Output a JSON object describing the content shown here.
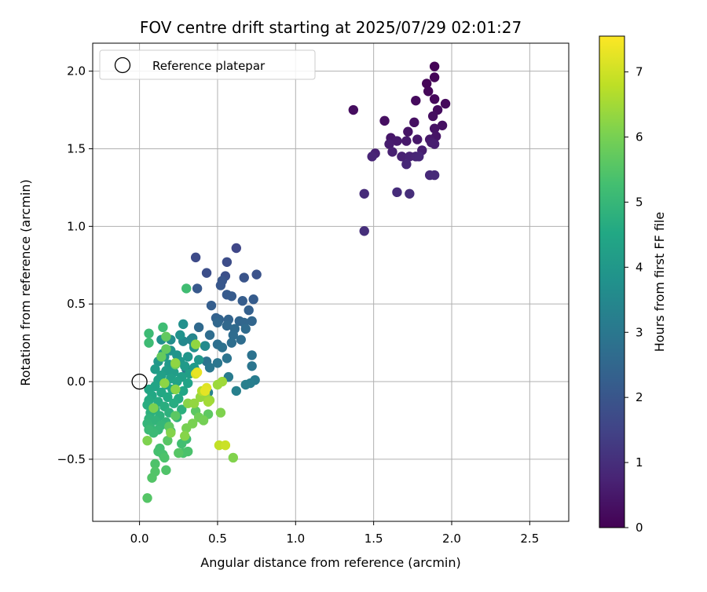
{
  "chart_data": {
    "type": "scatter",
    "title": "FOV centre drift starting at 2025/07/29 02:01:27",
    "xlabel": "Angular distance from reference (arcmin)",
    "ylabel": "Rotation from reference (arcmin)",
    "xlim": [
      -0.3,
      2.75
    ],
    "ylim": [
      -0.9,
      2.18
    ],
    "xticks": [
      0.0,
      0.5,
      1.0,
      1.5,
      2.0,
      2.5
    ],
    "xtick_labels": [
      "0.0",
      "0.5",
      "1.0",
      "1.5",
      "2.0",
      "2.5"
    ],
    "yticks": [
      -0.5,
      0.0,
      0.5,
      1.0,
      1.5,
      2.0
    ],
    "ytick_labels": [
      "−0.5",
      "0.0",
      "0.5",
      "1.0",
      "1.5",
      "2.0"
    ],
    "grid": true,
    "legend": {
      "position": "top-left",
      "entries": [
        {
          "label": "Reference platepar",
          "marker": "open-circle"
        }
      ]
    },
    "reference_point": {
      "x": 0.0,
      "y": 0.0
    },
    "colorbar": {
      "label": "Hours from first FF file",
      "colormap": "viridis",
      "range": [
        0,
        7.55
      ],
      "ticks": [
        0,
        1,
        2,
        3,
        4,
        5,
        6,
        7
      ],
      "tick_labels": [
        "0",
        "1",
        "2",
        "3",
        "4",
        "5",
        "6",
        "7"
      ]
    },
    "series": [
      {
        "points": [
          [
            1.89,
            2.03,
            0.05
          ],
          [
            1.89,
            1.96,
            0.08
          ],
          [
            1.84,
            1.92,
            0.1
          ],
          [
            1.85,
            1.87,
            0.12
          ],
          [
            1.89,
            1.82,
            0.15
          ],
          [
            1.96,
            1.79,
            0.18
          ],
          [
            1.77,
            1.81,
            0.2
          ],
          [
            1.91,
            1.75,
            0.22
          ],
          [
            1.37,
            1.75,
            0.25
          ],
          [
            1.88,
            1.71,
            0.28
          ],
          [
            1.57,
            1.68,
            0.3
          ],
          [
            1.76,
            1.67,
            0.32
          ],
          [
            1.94,
            1.65,
            0.35
          ],
          [
            1.89,
            1.63,
            0.38
          ],
          [
            1.72,
            1.61,
            0.4
          ],
          [
            1.9,
            1.58,
            0.42
          ],
          [
            1.61,
            1.57,
            0.45
          ],
          [
            1.86,
            1.56,
            0.48
          ],
          [
            1.78,
            1.56,
            0.5
          ],
          [
            1.71,
            1.55,
            0.52
          ],
          [
            1.65,
            1.55,
            0.55
          ],
          [
            1.87,
            1.54,
            0.58
          ],
          [
            1.6,
            1.53,
            0.6
          ],
          [
            1.89,
            1.53,
            0.62
          ],
          [
            1.81,
            1.49,
            0.65
          ],
          [
            1.62,
            1.48,
            0.68
          ],
          [
            1.51,
            1.47,
            0.7
          ],
          [
            1.68,
            1.45,
            0.72
          ],
          [
            1.73,
            1.45,
            0.75
          ],
          [
            1.49,
            1.45,
            0.78
          ],
          [
            1.77,
            1.45,
            0.8
          ],
          [
            1.79,
            1.45,
            0.82
          ],
          [
            1.71,
            1.4,
            0.85
          ],
          [
            1.86,
            1.33,
            0.88
          ],
          [
            1.89,
            1.33,
            0.9
          ],
          [
            1.44,
            1.21,
            0.92
          ],
          [
            1.65,
            1.22,
            0.95
          ],
          [
            1.73,
            1.21,
            0.98
          ],
          [
            1.44,
            0.97,
            1.02
          ],
          [
            0.62,
            0.86,
            1.6
          ],
          [
            0.36,
            0.8,
            1.7
          ],
          [
            0.56,
            0.77,
            1.75
          ],
          [
            0.43,
            0.7,
            1.8
          ],
          [
            0.55,
            0.68,
            1.85
          ],
          [
            0.75,
            0.69,
            1.9
          ],
          [
            0.67,
            0.67,
            1.95
          ],
          [
            0.53,
            0.65,
            2.0
          ],
          [
            0.52,
            0.62,
            2.05
          ],
          [
            0.37,
            0.6,
            2.1
          ],
          [
            0.56,
            0.56,
            2.12
          ],
          [
            0.59,
            0.55,
            2.15
          ],
          [
            0.73,
            0.53,
            2.18
          ],
          [
            0.66,
            0.52,
            2.2
          ],
          [
            0.46,
            0.49,
            2.25
          ],
          [
            0.7,
            0.46,
            2.3
          ],
          [
            0.49,
            0.41,
            2.35
          ],
          [
            0.51,
            0.4,
            2.4
          ],
          [
            0.57,
            0.4,
            2.42
          ],
          [
            0.64,
            0.39,
            2.45
          ],
          [
            0.72,
            0.39,
            2.48
          ],
          [
            0.67,
            0.38,
            2.5
          ],
          [
            0.5,
            0.38,
            2.52
          ],
          [
            0.56,
            0.36,
            2.55
          ],
          [
            0.38,
            0.35,
            2.58
          ],
          [
            0.61,
            0.34,
            2.6
          ],
          [
            0.68,
            0.34,
            2.62
          ],
          [
            0.6,
            0.3,
            2.65
          ],
          [
            0.45,
            0.3,
            2.68
          ],
          [
            0.65,
            0.27,
            2.7
          ],
          [
            0.59,
            0.25,
            2.72
          ],
          [
            0.5,
            0.24,
            2.75
          ],
          [
            0.42,
            0.23,
            2.78
          ],
          [
            0.53,
            0.22,
            2.8
          ],
          [
            0.72,
            0.17,
            2.85
          ],
          [
            0.43,
            0.13,
            2.88
          ],
          [
            0.56,
            0.15,
            2.9
          ],
          [
            0.72,
            0.1,
            2.92
          ],
          [
            0.5,
            0.12,
            2.95
          ],
          [
            0.45,
            0.09,
            2.98
          ],
          [
            0.3,
            0.08,
            3.0
          ],
          [
            0.36,
            0.07,
            3.02
          ],
          [
            0.31,
            0.06,
            3.05
          ],
          [
            0.57,
            0.03,
            3.1
          ],
          [
            0.74,
            0.01,
            3.15
          ],
          [
            0.71,
            -0.01,
            3.2
          ],
          [
            0.68,
            -0.02,
            3.22
          ],
          [
            0.62,
            -0.06,
            3.25
          ],
          [
            0.44,
            -0.07,
            3.3
          ],
          [
            0.34,
            0.28,
            3.4
          ],
          [
            0.33,
            0.27,
            3.45
          ],
          [
            0.28,
            0.26,
            3.5
          ],
          [
            0.35,
            0.24,
            3.55
          ],
          [
            0.42,
            0.23,
            3.6
          ],
          [
            0.2,
            0.27,
            3.65
          ],
          [
            0.14,
            0.27,
            3.7
          ],
          [
            0.28,
            0.37,
            3.75
          ],
          [
            0.26,
            0.3,
            3.8
          ],
          [
            0.35,
            0.22,
            3.82
          ],
          [
            0.2,
            0.2,
            3.85
          ],
          [
            0.15,
            0.18,
            3.88
          ],
          [
            0.24,
            0.17,
            3.9
          ],
          [
            0.31,
            0.16,
            3.92
          ],
          [
            0.16,
            0.16,
            3.95
          ],
          [
            0.38,
            0.14,
            3.98
          ],
          [
            0.12,
            0.13,
            4.0
          ],
          [
            0.26,
            0.13,
            4.02
          ],
          [
            0.19,
            0.11,
            4.05
          ],
          [
            0.29,
            0.1,
            4.08
          ],
          [
            0.35,
            0.09,
            4.1
          ],
          [
            0.1,
            0.08,
            4.12
          ],
          [
            0.17,
            0.07,
            4.15
          ],
          [
            0.22,
            0.06,
            4.18
          ],
          [
            0.32,
            0.05,
            4.2
          ],
          [
            0.14,
            0.04,
            4.22
          ],
          [
            0.27,
            0.03,
            4.25
          ],
          [
            0.2,
            0.02,
            4.28
          ],
          [
            0.12,
            0.01,
            4.3
          ],
          [
            0.24,
            0.0,
            4.32
          ],
          [
            0.31,
            -0.01,
            4.35
          ],
          [
            0.17,
            -0.02,
            4.38
          ],
          [
            0.1,
            -0.03,
            4.4
          ],
          [
            0.06,
            -0.05,
            4.42
          ],
          [
            0.21,
            -0.05,
            4.45
          ],
          [
            0.28,
            -0.06,
            4.48
          ],
          [
            0.14,
            -0.07,
            4.5
          ],
          [
            0.08,
            -0.09,
            4.52
          ],
          [
            0.18,
            -0.1,
            4.55
          ],
          [
            0.25,
            -0.11,
            4.58
          ],
          [
            0.06,
            -0.12,
            4.6
          ],
          [
            0.12,
            -0.13,
            4.62
          ],
          [
            0.22,
            -0.14,
            4.65
          ],
          [
            0.05,
            -0.15,
            4.68
          ],
          [
            0.16,
            -0.16,
            4.7
          ],
          [
            0.1,
            -0.18,
            4.72
          ],
          [
            0.27,
            -0.18,
            4.75
          ],
          [
            0.07,
            -0.2,
            4.78
          ],
          [
            0.19,
            -0.2,
            4.8
          ],
          [
            0.13,
            -0.22,
            4.82
          ],
          [
            0.24,
            -0.23,
            4.85
          ],
          [
            0.06,
            -0.24,
            4.88
          ],
          [
            0.1,
            -0.25,
            4.9
          ],
          [
            0.17,
            -0.26,
            4.92
          ],
          [
            0.05,
            -0.27,
            4.95
          ],
          [
            0.14,
            -0.28,
            4.98
          ],
          [
            0.07,
            -0.3,
            5.0
          ],
          [
            0.12,
            -0.31,
            5.02
          ],
          [
            0.2,
            -0.32,
            5.05
          ],
          [
            0.09,
            -0.33,
            5.08
          ],
          [
            0.06,
            -0.31,
            5.1
          ],
          [
            0.06,
            0.31,
            5.12
          ],
          [
            0.06,
            0.25,
            5.15
          ],
          [
            0.15,
            0.35,
            5.18
          ],
          [
            0.3,
            0.6,
            5.2
          ],
          [
            0.3,
            -0.37,
            5.22
          ],
          [
            0.27,
            -0.4,
            5.25
          ],
          [
            0.13,
            -0.43,
            5.28
          ],
          [
            0.12,
            -0.45,
            5.3
          ],
          [
            0.15,
            -0.47,
            5.32
          ],
          [
            0.28,
            -0.46,
            5.35
          ],
          [
            0.31,
            -0.45,
            5.38
          ],
          [
            0.16,
            -0.49,
            5.4
          ],
          [
            0.1,
            -0.53,
            5.42
          ],
          [
            0.17,
            -0.57,
            5.45
          ],
          [
            0.1,
            -0.58,
            5.48
          ],
          [
            0.08,
            -0.62,
            5.5
          ],
          [
            0.05,
            -0.75,
            5.52
          ],
          [
            0.25,
            -0.46,
            5.55
          ],
          [
            0.18,
            -0.38,
            5.58
          ],
          [
            0.23,
            -0.22,
            5.6
          ],
          [
            0.36,
            -0.19,
            5.62
          ],
          [
            0.44,
            -0.21,
            5.65
          ],
          [
            0.19,
            -0.29,
            5.68
          ],
          [
            0.17,
            0.29,
            5.7
          ],
          [
            0.17,
            0.21,
            5.72
          ],
          [
            0.14,
            0.16,
            5.75
          ],
          [
            0.23,
            0.11,
            5.78
          ],
          [
            0.38,
            -0.23,
            5.9
          ],
          [
            0.41,
            -0.25,
            5.95
          ],
          [
            0.3,
            -0.3,
            6.0
          ],
          [
            0.34,
            -0.27,
            6.02
          ],
          [
            0.09,
            -0.17,
            6.05
          ],
          [
            0.05,
            -0.38,
            6.08
          ],
          [
            0.52,
            -0.2,
            6.1
          ],
          [
            0.6,
            -0.49,
            6.12
          ],
          [
            0.2,
            -0.33,
            6.15
          ],
          [
            0.29,
            -0.35,
            6.18
          ],
          [
            0.31,
            -0.14,
            6.2
          ],
          [
            0.23,
            -0.05,
            6.22
          ],
          [
            0.16,
            -0.01,
            6.25
          ],
          [
            0.23,
            0.12,
            6.28
          ],
          [
            0.36,
            0.24,
            6.3
          ],
          [
            0.35,
            -0.14,
            6.32
          ],
          [
            0.39,
            -0.1,
            6.35
          ],
          [
            0.42,
            -0.08,
            6.38
          ],
          [
            0.45,
            -0.12,
            6.4
          ],
          [
            0.5,
            -0.02,
            6.42
          ],
          [
            0.53,
            0.0,
            6.45
          ],
          [
            0.44,
            -0.13,
            6.5
          ],
          [
            0.4,
            -0.06,
            6.7
          ],
          [
            0.51,
            -0.41,
            6.85
          ],
          [
            0.55,
            -0.41,
            6.95
          ],
          [
            0.36,
            0.05,
            7.1
          ],
          [
            0.43,
            -0.04,
            7.2
          ],
          [
            0.42,
            -0.06,
            7.25
          ],
          [
            0.37,
            0.06,
            7.3
          ]
        ]
      }
    ]
  }
}
